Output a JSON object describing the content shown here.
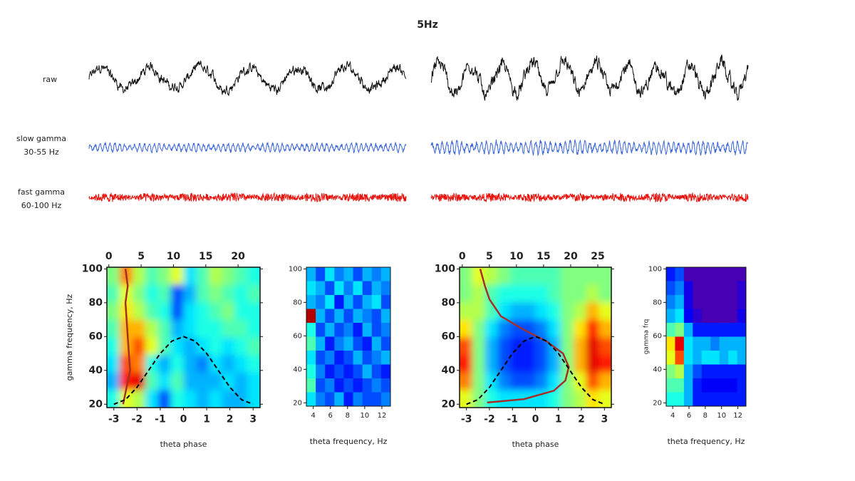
{
  "title": "5Hz",
  "trace_labels": {
    "raw": "raw",
    "slow": [
      "slow gamma",
      "30-55 Hz"
    ],
    "fast": [
      "fast gamma",
      "60-100 Hz"
    ]
  },
  "chart_data": [
    {
      "type": "heatmap",
      "colormap": "jet",
      "xlabel": "theta phase",
      "ylabel": "gamma frequency, Hz",
      "xlim": [
        -3.3,
        3.3
      ],
      "xticks": [
        -3,
        -2,
        -1,
        0,
        1,
        2,
        3
      ],
      "x2lim": [
        -0.3,
        23.4
      ],
      "x2ticks": [
        0,
        5,
        10,
        15,
        20
      ],
      "ylim": [
        18,
        101
      ],
      "yticks": [
        20,
        40,
        60,
        80,
        100
      ],
      "z": [
        [
          0.5,
          0.75,
          0.55,
          0.45,
          0.5,
          0.6,
          0.35,
          0.45,
          0.55,
          0.5,
          0.45,
          0.4
        ],
        [
          0.45,
          0.6,
          0.5,
          0.4,
          0.45,
          0.2,
          0.3,
          0.45,
          0.5,
          0.45,
          0.4,
          0.45
        ],
        [
          0.5,
          0.65,
          0.55,
          0.45,
          0.4,
          0.2,
          0.35,
          0.4,
          0.45,
          0.5,
          0.4,
          0.4
        ],
        [
          0.45,
          0.7,
          0.7,
          0.55,
          0.45,
          0.3,
          0.35,
          0.4,
          0.4,
          0.45,
          0.45,
          0.4
        ],
        [
          0.4,
          0.7,
          0.8,
          0.6,
          0.45,
          0.35,
          0.3,
          0.35,
          0.4,
          0.35,
          0.4,
          0.45
        ],
        [
          0.35,
          0.8,
          0.75,
          0.4,
          0.3,
          0.4,
          0.3,
          0.25,
          0.35,
          0.3,
          0.35,
          0.4
        ],
        [
          0.3,
          0.85,
          0.9,
          0.45,
          0.35,
          0.45,
          0.3,
          0.3,
          0.3,
          0.35,
          0.3,
          0.35
        ],
        [
          0.4,
          0.6,
          0.55,
          0.35,
          0.2,
          0.4,
          0.35,
          0.3,
          0.35,
          0.3,
          0.3,
          0.35
        ]
      ],
      "series": [
        {
          "color": "#a3302a",
          "dash": false,
          "x": [
            -2.6,
            -2.45,
            -2.3,
            -2.35,
            -2.4,
            -2.45,
            -2.5,
            -2.4,
            -2.5
          ],
          "values": [
            20,
            30,
            40,
            50,
            60,
            70,
            80,
            90,
            100
          ]
        },
        {
          "color": "#000000",
          "dash": true,
          "x": [
            -3,
            -2.5,
            -2,
            -1.5,
            -1,
            -0.5,
            0,
            0.5,
            1,
            1.5,
            2,
            2.5,
            3
          ],
          "values": [
            20,
            22.7,
            30,
            40,
            50,
            57.3,
            60,
            57.3,
            50,
            40,
            30,
            22.7,
            20
          ]
        }
      ]
    },
    {
      "type": "heatmap",
      "colormap": "jet",
      "xlabel": "theta frequency, Hz",
      "xlim": [
        3.2,
        13
      ],
      "xticks": [
        4,
        6,
        8,
        10,
        12
      ],
      "ylim": [
        18,
        101
      ],
      "yticks": [
        20,
        40,
        60,
        80,
        100
      ],
      "z": [
        [
          0.3,
          0.2,
          0.35,
          0.25,
          0.3,
          0.2,
          0.3,
          0.25,
          0.3
        ],
        [
          0.35,
          0.3,
          0.2,
          0.35,
          0.25,
          0.35,
          0.2,
          0.3,
          0.25
        ],
        [
          0.3,
          0.25,
          0.35,
          0.15,
          0.3,
          0.2,
          0.3,
          0.35,
          0.2
        ],
        [
          0.95,
          0.3,
          0.2,
          0.3,
          0.2,
          0.3,
          0.25,
          0.2,
          0.3
        ],
        [
          0.4,
          0.2,
          0.3,
          0.2,
          0.25,
          0.15,
          0.3,
          0.2,
          0.25
        ],
        [
          0.45,
          0.3,
          0.15,
          0.25,
          0.3,
          0.2,
          0.15,
          0.3,
          0.2
        ],
        [
          0.35,
          0.2,
          0.25,
          0.15,
          0.2,
          0.3,
          0.2,
          0.25,
          0.3
        ],
        [
          0.4,
          0.25,
          0.15,
          0.2,
          0.15,
          0.2,
          0.3,
          0.2,
          0.15
        ],
        [
          0.45,
          0.2,
          0.25,
          0.15,
          0.2,
          0.15,
          0.2,
          0.25,
          0.2
        ],
        [
          0.35,
          0.25,
          0.2,
          0.3,
          0.15,
          0.25,
          0.2,
          0.2,
          0.25
        ]
      ]
    },
    {
      "type": "heatmap",
      "colormap": "jet",
      "xlabel": "theta phase",
      "xlim": [
        -3.3,
        3.3
      ],
      "xticks": [
        -3,
        -2,
        -1,
        0,
        1,
        2,
        3
      ],
      "x2lim": [
        -0.5,
        27.5
      ],
      "x2ticks": [
        0,
        5,
        10,
        15,
        20,
        25
      ],
      "ylim": [
        18,
        101
      ],
      "yticks": [
        20,
        40,
        60,
        80,
        100
      ],
      "z": [
        [
          0.5,
          0.6,
          0.55,
          0.5,
          0.45,
          0.45,
          0.45,
          0.45,
          0.5,
          0.5,
          0.5,
          0.5
        ],
        [
          0.5,
          0.55,
          0.45,
          0.4,
          0.4,
          0.4,
          0.4,
          0.45,
          0.5,
          0.5,
          0.55,
          0.5
        ],
        [
          0.55,
          0.55,
          0.45,
          0.35,
          0.3,
          0.3,
          0.35,
          0.4,
          0.5,
          0.55,
          0.7,
          0.6
        ],
        [
          0.65,
          0.5,
          0.35,
          0.25,
          0.2,
          0.2,
          0.25,
          0.35,
          0.5,
          0.65,
          0.85,
          0.7
        ],
        [
          0.8,
          0.5,
          0.3,
          0.2,
          0.15,
          0.15,
          0.2,
          0.3,
          0.5,
          0.7,
          0.9,
          0.8
        ],
        [
          0.85,
          0.5,
          0.3,
          0.2,
          0.15,
          0.15,
          0.2,
          0.3,
          0.5,
          0.7,
          0.9,
          0.85
        ],
        [
          0.75,
          0.5,
          0.35,
          0.25,
          0.2,
          0.2,
          0.25,
          0.35,
          0.5,
          0.6,
          0.8,
          0.7
        ],
        [
          0.6,
          0.5,
          0.4,
          0.35,
          0.35,
          0.35,
          0.35,
          0.4,
          0.5,
          0.55,
          0.65,
          0.6
        ]
      ],
      "series": [
        {
          "color": "#a3302a",
          "dash": false,
          "x": [
            -2.1,
            -0.5,
            0.8,
            1.3,
            1.45,
            1.2,
            0.5,
            -0.5,
            -1.5,
            -2.0,
            -2.2,
            -2.4
          ],
          "values": [
            21,
            23,
            28,
            34,
            42,
            50,
            57,
            64,
            72,
            82,
            90,
            100
          ]
        },
        {
          "color": "#000000",
          "dash": true,
          "x": [
            -3,
            -2.5,
            -2,
            -1.5,
            -1,
            -0.5,
            0,
            0.5,
            1,
            1.5,
            2,
            2.5,
            3
          ],
          "values": [
            20,
            22.7,
            30,
            40,
            50,
            57.3,
            60,
            57.3,
            50,
            40,
            30,
            22.7,
            20
          ]
        }
      ]
    },
    {
      "type": "heatmap",
      "colormap": "jet",
      "xlabel": "theta frequency, Hz",
      "ylabel": "gamma frq",
      "xlim": [
        3.2,
        13
      ],
      "xticks": [
        4,
        6,
        8,
        10,
        12
      ],
      "ylim": [
        18,
        101
      ],
      "yticks": [
        20,
        40,
        60,
        80,
        100
      ],
      "z": [
        [
          0.15,
          0.2,
          0.05,
          0.05,
          0.05,
          0.05,
          0.05,
          0.05,
          0.05
        ],
        [
          0.2,
          0.25,
          0.1,
          0.05,
          0.05,
          0.05,
          0.05,
          0.05,
          0.08
        ],
        [
          0.25,
          0.3,
          0.1,
          0.05,
          0.05,
          0.05,
          0.05,
          0.05,
          0.08
        ],
        [
          0.3,
          0.35,
          0.12,
          0.08,
          0.05,
          0.05,
          0.05,
          0.05,
          0.1
        ],
        [
          0.45,
          0.5,
          0.3,
          0.15,
          0.15,
          0.15,
          0.15,
          0.15,
          0.15
        ],
        [
          0.65,
          0.9,
          0.35,
          0.3,
          0.3,
          0.25,
          0.3,
          0.3,
          0.3
        ],
        [
          0.6,
          0.8,
          0.35,
          0.3,
          0.35,
          0.35,
          0.3,
          0.35,
          0.3
        ],
        [
          0.5,
          0.55,
          0.3,
          0.2,
          0.15,
          0.15,
          0.15,
          0.15,
          0.15
        ],
        [
          0.45,
          0.45,
          0.3,
          0.15,
          0.12,
          0.12,
          0.12,
          0.12,
          0.15
        ],
        [
          0.4,
          0.4,
          0.3,
          0.15,
          0.15,
          0.15,
          0.15,
          0.15,
          0.15
        ]
      ]
    }
  ]
}
